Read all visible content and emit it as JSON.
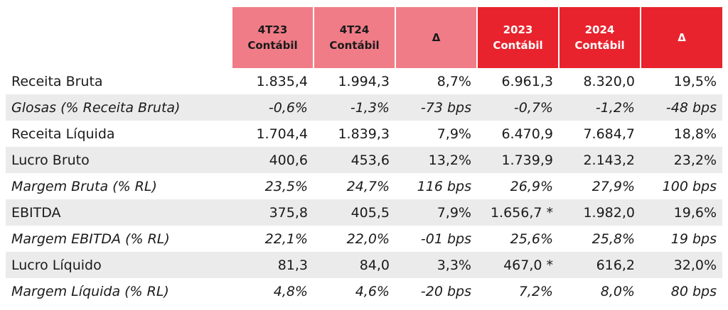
{
  "headers": [
    {
      "line1": "4T23",
      "line2": "Contábil"
    },
    {
      "line1": "4T24",
      "line2": "Contábil"
    },
    {
      "line1": "Δ",
      "line2": ""
    },
    {
      "line1": "2023",
      "line2": "Contábil"
    },
    {
      "line1": "2024",
      "line2": "Contábil"
    },
    {
      "line1": "Δ",
      "line2": ""
    }
  ],
  "colors": {
    "pink_header": "#f07c87",
    "red_header": "#e8232d",
    "row_shade": "#ebebeb"
  },
  "rows": [
    {
      "label": "Receita Bruta",
      "values": [
        "1.835,4",
        "1.994,3",
        "8,7%",
        "6.961,3",
        "8.320,0",
        "19,5%"
      ]
    },
    {
      "label": "Glosas (% Receita Bruta)",
      "values": [
        "-0,6%",
        "-1,3%",
        "-73 bps",
        "-0,7%",
        "-1,2%",
        "-48 bps"
      ]
    },
    {
      "label": "Receita Líquida",
      "values": [
        "1.704,4",
        "1.839,3",
        "7,9%",
        "6.470,9",
        "7.684,7",
        "18,8%"
      ]
    },
    {
      "label": "Lucro Bruto",
      "values": [
        "400,6",
        "453,6",
        "13,2%",
        "1.739,9",
        "2.143,2",
        "23,2%"
      ]
    },
    {
      "label": "Margem Bruta (% RL)",
      "values": [
        "23,5%",
        "24,7%",
        "116 bps",
        "26,9%",
        "27,9%",
        "100 bps"
      ]
    },
    {
      "label": "EBITDA",
      "values": [
        "375,8",
        "405,5",
        "7,9%",
        "1.656,7 *",
        "1.982,0",
        "19,6%"
      ]
    },
    {
      "label": "Margem EBITDA (% RL)",
      "values": [
        "22,1%",
        "22,0%",
        "-01 bps",
        "25,6%",
        "25,8%",
        "19 bps"
      ]
    },
    {
      "label": "Lucro Líquido",
      "values": [
        "81,3",
        "84,0",
        "3,3%",
        "467,0 *",
        "616,2",
        "32,0%"
      ]
    },
    {
      "label": "Margem Líquida (% RL)",
      "values": [
        "4,8%",
        "4,6%",
        "-20 bps",
        "7,2%",
        "8,0%",
        "80 bps"
      ]
    }
  ]
}
